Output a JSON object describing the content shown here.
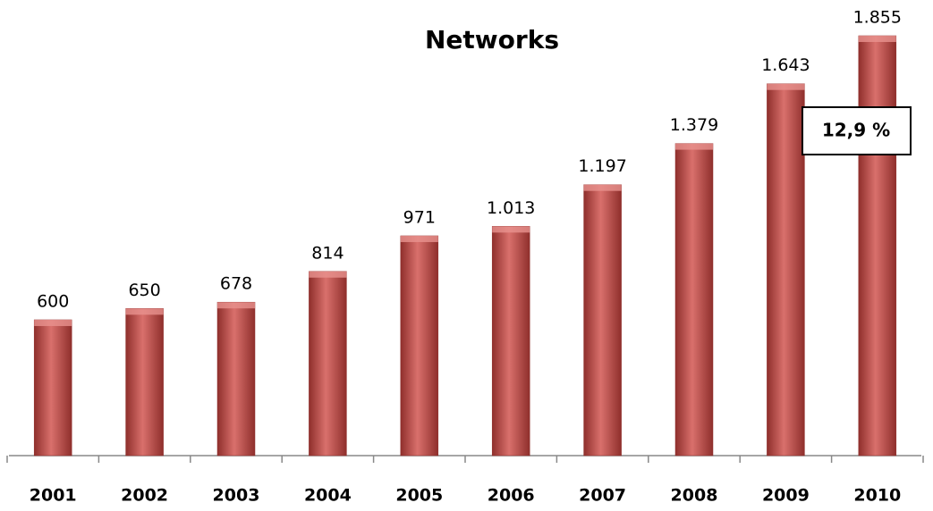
{
  "chart_data": {
    "type": "bar",
    "title": "Networks",
    "categories": [
      "2001",
      "2002",
      "2003",
      "2004",
      "2005",
      "2006",
      "2007",
      "2008",
      "2009",
      "2010"
    ],
    "values": [
      600,
      650,
      678,
      814,
      971,
      1013,
      1197,
      1379,
      1643,
      1855
    ],
    "value_labels": [
      "600",
      "650",
      "678",
      "814",
      "971",
      "1.013",
      "1.197",
      "1.379",
      "1.643",
      "1.855"
    ],
    "color": "#c0504d",
    "annotation": "12,9 %"
  }
}
